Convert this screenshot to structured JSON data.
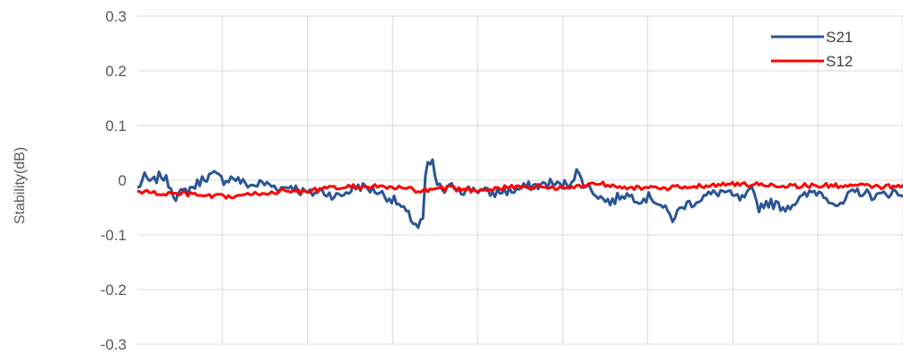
{
  "chart_data": {
    "type": "line",
    "ylabel": "Stability(dB)",
    "ylim": [
      -0.3,
      0.3
    ],
    "yticks": [
      0.3,
      0.2,
      0.1,
      0,
      -0.1,
      -0.2,
      -0.3
    ],
    "ytick_labels": [
      "0.3",
      "0.2",
      "0.1",
      "0",
      "-0.1",
      "-0.2",
      "-0.3"
    ],
    "x_points": 320,
    "x_gridlines": 9,
    "grid": true,
    "legend_position": "top-right",
    "series": [
      {
        "name": "S21",
        "color": "#2a5597",
        "keypoints": [
          [
            0,
            -0.015
          ],
          [
            3,
            0.005
          ],
          [
            6,
            -0.005
          ],
          [
            10,
            0.01
          ],
          [
            13,
            -0.005
          ],
          [
            16,
            -0.03
          ],
          [
            20,
            -0.02
          ],
          [
            24,
            -0.01
          ],
          [
            28,
            0.005
          ],
          [
            32,
            0.01
          ],
          [
            36,
            0.0
          ],
          [
            40,
            0.005
          ],
          [
            44,
            -0.005
          ],
          [
            48,
            -0.01
          ],
          [
            52,
            -0.005
          ],
          [
            56,
            -0.01
          ],
          [
            60,
            -0.015
          ],
          [
            64,
            -0.01
          ],
          [
            68,
            -0.02
          ],
          [
            72,
            -0.025
          ],
          [
            76,
            -0.02
          ],
          [
            80,
            -0.025
          ],
          [
            84,
            -0.03
          ],
          [
            88,
            -0.02
          ],
          [
            92,
            -0.01
          ],
          [
            96,
            -0.015
          ],
          [
            100,
            -0.02
          ],
          [
            104,
            -0.03
          ],
          [
            108,
            -0.04
          ],
          [
            112,
            -0.06
          ],
          [
            115,
            -0.075
          ],
          [
            117,
            -0.085
          ],
          [
            119,
            -0.07
          ],
          [
            120,
            0.0
          ],
          [
            121,
            0.028
          ],
          [
            123,
            0.03
          ],
          [
            125,
            -0.01
          ],
          [
            128,
            -0.02
          ],
          [
            132,
            -0.01
          ],
          [
            136,
            -0.02
          ],
          [
            140,
            -0.015
          ],
          [
            144,
            -0.02
          ],
          [
            148,
            -0.025
          ],
          [
            152,
            -0.02
          ],
          [
            156,
            -0.02
          ],
          [
            160,
            -0.015
          ],
          [
            164,
            -0.01
          ],
          [
            168,
            -0.01
          ],
          [
            172,
            -0.005
          ],
          [
            176,
            -0.01
          ],
          [
            180,
            -0.005
          ],
          [
            183,
            0.015
          ],
          [
            186,
            -0.005
          ],
          [
            190,
            -0.02
          ],
          [
            194,
            -0.035
          ],
          [
            198,
            -0.04
          ],
          [
            202,
            -0.025
          ],
          [
            206,
            -0.03
          ],
          [
            210,
            -0.035
          ],
          [
            214,
            -0.03
          ],
          [
            218,
            -0.045
          ],
          [
            221,
            -0.06
          ],
          [
            223,
            -0.07
          ],
          [
            225,
            -0.06
          ],
          [
            228,
            -0.045
          ],
          [
            232,
            -0.04
          ],
          [
            236,
            -0.03
          ],
          [
            240,
            -0.025
          ],
          [
            244,
            -0.02
          ],
          [
            248,
            -0.03
          ],
          [
            252,
            -0.035
          ],
          [
            256,
            -0.02
          ],
          [
            259,
            -0.05
          ],
          [
            262,
            -0.04
          ],
          [
            266,
            -0.045
          ],
          [
            270,
            -0.05
          ],
          [
            274,
            -0.04
          ],
          [
            278,
            -0.03
          ],
          [
            282,
            -0.02
          ],
          [
            286,
            -0.025
          ],
          [
            290,
            -0.04
          ],
          [
            293,
            -0.05
          ],
          [
            296,
            -0.03
          ],
          [
            300,
            -0.02
          ],
          [
            304,
            -0.025
          ],
          [
            308,
            -0.03
          ],
          [
            312,
            -0.025
          ],
          [
            315,
            -0.02
          ],
          [
            318,
            -0.03
          ],
          [
            319,
            -0.025
          ]
        ]
      },
      {
        "name": "S12",
        "color": "#ff0000",
        "keypoints": [
          [
            0,
            -0.02
          ],
          [
            10,
            -0.025
          ],
          [
            20,
            -0.025
          ],
          [
            30,
            -0.03
          ],
          [
            40,
            -0.03
          ],
          [
            50,
            -0.025
          ],
          [
            60,
            -0.02
          ],
          [
            70,
            -0.02
          ],
          [
            80,
            -0.015
          ],
          [
            90,
            -0.012
          ],
          [
            100,
            -0.012
          ],
          [
            110,
            -0.015
          ],
          [
            120,
            -0.02
          ],
          [
            130,
            -0.015
          ],
          [
            140,
            -0.018
          ],
          [
            150,
            -0.015
          ],
          [
            160,
            -0.012
          ],
          [
            170,
            -0.012
          ],
          [
            180,
            -0.015
          ],
          [
            190,
            -0.005
          ],
          [
            200,
            -0.01
          ],
          [
            210,
            -0.015
          ],
          [
            220,
            -0.015
          ],
          [
            230,
            -0.012
          ],
          [
            240,
            -0.008
          ],
          [
            250,
            -0.008
          ],
          [
            260,
            -0.008
          ],
          [
            270,
            -0.01
          ],
          [
            280,
            -0.01
          ],
          [
            290,
            -0.01
          ],
          [
            300,
            -0.01
          ],
          [
            310,
            -0.012
          ],
          [
            319,
            -0.012
          ]
        ]
      }
    ]
  }
}
